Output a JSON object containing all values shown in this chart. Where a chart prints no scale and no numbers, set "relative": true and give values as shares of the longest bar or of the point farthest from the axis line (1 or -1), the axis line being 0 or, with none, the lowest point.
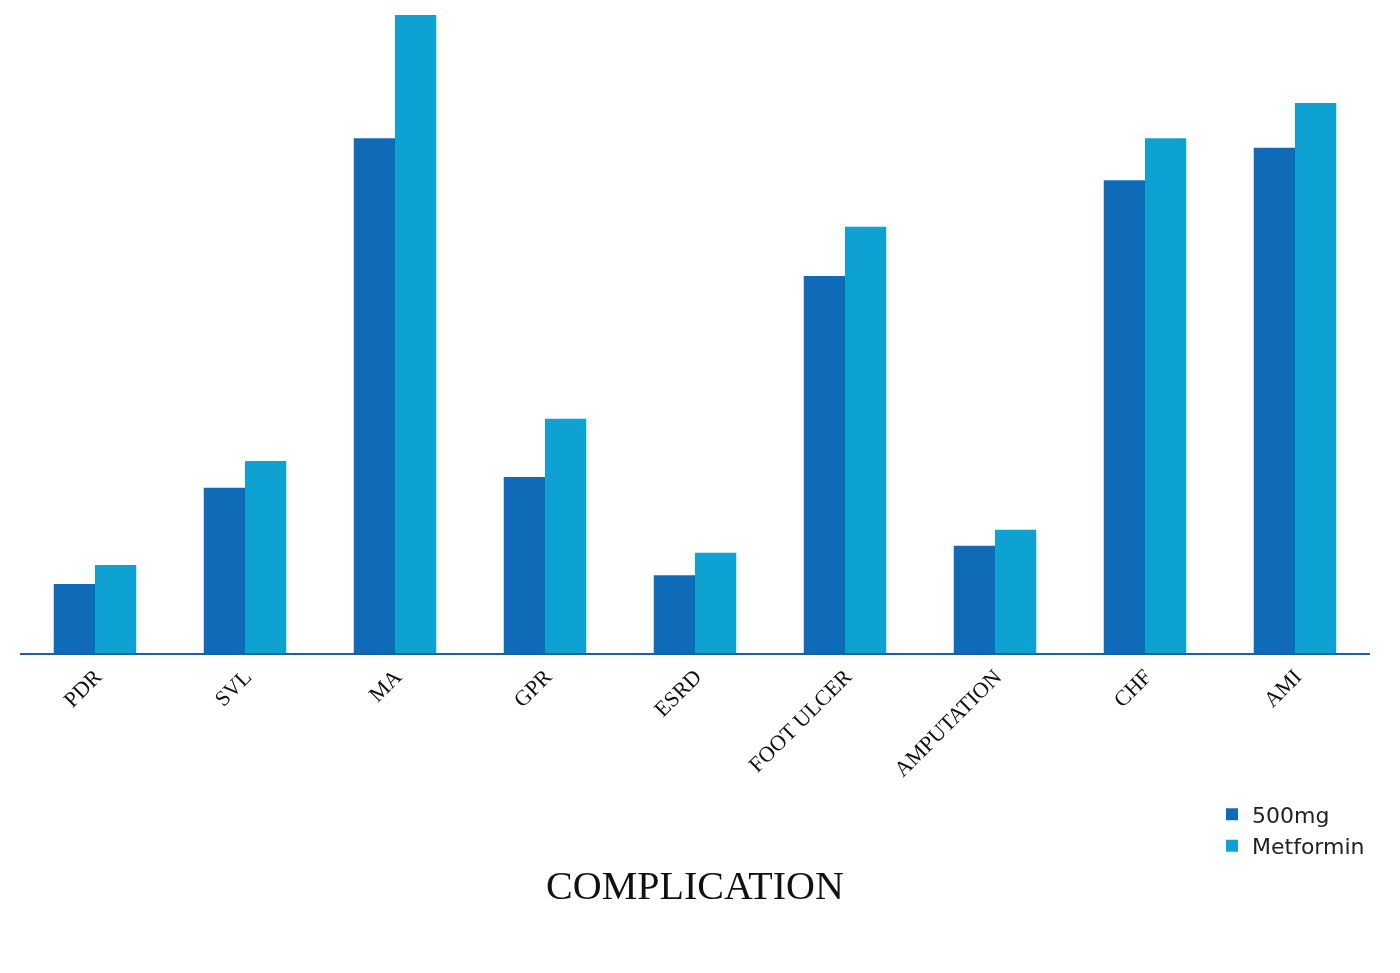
{
  "chart_data": {
    "type": "bar",
    "xlabel": "COMPLICATION",
    "relative": true,
    "categories": [
      "PDR",
      "SVL",
      "MA",
      "GPR",
      "ESRD",
      "FOOT ULCER",
      "AMPUTATION",
      "CHF",
      "AMI"
    ],
    "series": [
      {
        "name": "500mg",
        "color": "#0f6bb8",
        "values": [
          0.108,
          0.259,
          0.807,
          0.276,
          0.122,
          0.591,
          0.168,
          0.741,
          0.792
        ]
      },
      {
        "name": "Metformin",
        "color": "#0ea2d2",
        "values": [
          0.138,
          0.301,
          1,
          0.367,
          0.157,
          0.668,
          0.193,
          0.807,
          0.862
        ]
      }
    ],
    "legend": "bottom right"
  }
}
